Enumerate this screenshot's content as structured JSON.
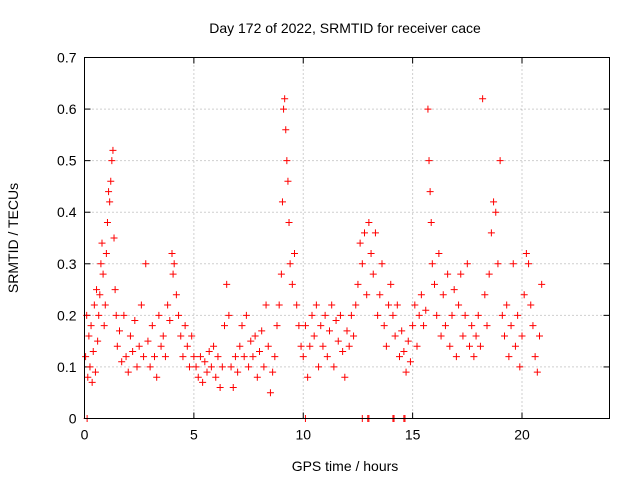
{
  "chart_data": {
    "type": "scatter",
    "title": "Day 172 of 2022, SRMTID for receiver cace",
    "xlabel": "GPS time / hours",
    "ylabel": "SRMTID / TECUs",
    "xlim": [
      0,
      24
    ],
    "ylim": [
      0,
      0.7
    ],
    "xticks": [
      0,
      5,
      10,
      15,
      20
    ],
    "yticks": [
      0,
      0.1,
      0.2,
      0.3,
      0.4,
      0.5,
      0.6,
      0.7
    ],
    "grid": true,
    "marker": "+",
    "color": "#ff0000",
    "series": [
      {
        "name": "SRMTID",
        "points": [
          [
            0.05,
            0.12
          ],
          [
            0.1,
            0.2
          ],
          [
            0.15,
            0.08
          ],
          [
            0.2,
            0.16
          ],
          [
            0.25,
            0.1
          ],
          [
            0.3,
            0.18
          ],
          [
            0.35,
            0.07
          ],
          [
            0.4,
            0.13
          ],
          [
            0.45,
            0.22
          ],
          [
            0.5,
            0.09
          ],
          [
            0.55,
            0.25
          ],
          [
            0.6,
            0.15
          ],
          [
            0.65,
            0.2
          ],
          [
            0.7,
            0.24
          ],
          [
            0.75,
            0.3
          ],
          [
            0.8,
            0.34
          ],
          [
            0.85,
            0.28
          ],
          [
            0.9,
            0.18
          ],
          [
            0.95,
            0.22
          ],
          [
            1.0,
            0.32
          ],
          [
            1.05,
            0.38
          ],
          [
            1.1,
            0.44
          ],
          [
            1.15,
            0.42
          ],
          [
            1.2,
            0.46
          ],
          [
            1.25,
            0.5
          ],
          [
            1.3,
            0.52
          ],
          [
            1.35,
            0.35
          ],
          [
            1.4,
            0.25
          ],
          [
            1.45,
            0.2
          ],
          [
            1.5,
            0.14
          ],
          [
            1.6,
            0.17
          ],
          [
            1.7,
            0.11
          ],
          [
            1.8,
            0.2
          ],
          [
            1.9,
            0.12
          ],
          [
            2.0,
            0.09
          ],
          [
            2.1,
            0.16
          ],
          [
            2.2,
            0.13
          ],
          [
            2.3,
            0.19
          ],
          [
            2.4,
            0.1
          ],
          [
            2.5,
            0.14
          ],
          [
            2.6,
            0.22
          ],
          [
            2.7,
            0.12
          ],
          [
            2.8,
            0.3
          ],
          [
            2.9,
            0.15
          ],
          [
            3.0,
            0.1
          ],
          [
            3.1,
            0.18
          ],
          [
            3.2,
            0.12
          ],
          [
            3.3,
            0.08
          ],
          [
            3.4,
            0.2
          ],
          [
            3.5,
            0.14
          ],
          [
            3.6,
            0.16
          ],
          [
            3.7,
            0.12
          ],
          [
            3.8,
            0.22
          ],
          [
            3.9,
            0.19
          ],
          [
            4.0,
            0.32
          ],
          [
            4.05,
            0.28
          ],
          [
            4.1,
            0.3
          ],
          [
            4.2,
            0.24
          ],
          [
            4.3,
            0.2
          ],
          [
            4.4,
            0.16
          ],
          [
            4.5,
            0.12
          ],
          [
            4.6,
            0.18
          ],
          [
            4.7,
            0.14
          ],
          [
            4.8,
            0.1
          ],
          [
            4.9,
            0.16
          ],
          [
            5.0,
            0.12
          ],
          [
            5.1,
            0.1
          ],
          [
            5.2,
            0.08
          ],
          [
            5.3,
            0.12
          ],
          [
            5.4,
            0.07
          ],
          [
            5.5,
            0.11
          ],
          [
            5.6,
            0.09
          ],
          [
            5.7,
            0.13
          ],
          [
            5.8,
            0.1
          ],
          [
            5.9,
            0.14
          ],
          [
            6.0,
            0.08
          ],
          [
            6.1,
            0.12
          ],
          [
            6.2,
            0.06
          ],
          [
            6.3,
            0.1
          ],
          [
            6.4,
            0.18
          ],
          [
            6.5,
            0.26
          ],
          [
            6.6,
            0.2
          ],
          [
            6.7,
            0.1
          ],
          [
            6.8,
            0.06
          ],
          [
            6.9,
            0.12
          ],
          [
            7.0,
            0.09
          ],
          [
            7.1,
            0.14
          ],
          [
            7.2,
            0.18
          ],
          [
            7.3,
            0.12
          ],
          [
            7.4,
            0.2
          ],
          [
            7.5,
            0.1
          ],
          [
            7.6,
            0.15
          ],
          [
            7.7,
            0.12
          ],
          [
            7.8,
            0.16
          ],
          [
            7.9,
            0.08
          ],
          [
            8.0,
            0.13
          ],
          [
            8.1,
            0.17
          ],
          [
            8.2,
            0.1
          ],
          [
            8.3,
            0.22
          ],
          [
            8.4,
            0.14
          ],
          [
            8.5,
            0.05
          ],
          [
            8.6,
            0.09
          ],
          [
            8.7,
            0.12
          ],
          [
            8.8,
            0.18
          ],
          [
            8.9,
            0.22
          ],
          [
            9.0,
            0.28
          ],
          [
            9.05,
            0.42
          ],
          [
            9.1,
            0.6
          ],
          [
            9.15,
            0.62
          ],
          [
            9.2,
            0.56
          ],
          [
            9.25,
            0.5
          ],
          [
            9.3,
            0.46
          ],
          [
            9.35,
            0.38
          ],
          [
            9.4,
            0.3
          ],
          [
            9.5,
            0.26
          ],
          [
            9.6,
            0.32
          ],
          [
            9.7,
            0.22
          ],
          [
            9.8,
            0.18
          ],
          [
            9.9,
            0.14
          ],
          [
            10.0,
            0.12
          ],
          [
            10.1,
            0.18
          ],
          [
            10.2,
            0.08
          ],
          [
            10.3,
            0.14
          ],
          [
            10.4,
            0.2
          ],
          [
            10.5,
            0.16
          ],
          [
            10.6,
            0.22
          ],
          [
            10.7,
            0.1
          ],
          [
            10.8,
            0.18
          ],
          [
            10.9,
            0.14
          ],
          [
            11.0,
            0.2
          ],
          [
            11.1,
            0.12
          ],
          [
            11.2,
            0.17
          ],
          [
            11.3,
            0.22
          ],
          [
            11.4,
            0.1
          ],
          [
            11.5,
            0.19
          ],
          [
            11.6,
            0.15
          ],
          [
            11.7,
            0.2
          ],
          [
            11.8,
            0.13
          ],
          [
            11.9,
            0.08
          ],
          [
            12.0,
            0.17
          ],
          [
            12.1,
            0.14
          ],
          [
            12.2,
            0.2
          ],
          [
            12.3,
            0.16
          ],
          [
            12.4,
            0.22
          ],
          [
            12.5,
            0.26
          ],
          [
            12.6,
            0.34
          ],
          [
            12.7,
            0.3
          ],
          [
            12.8,
            0.36
          ],
          [
            12.9,
            0.24
          ],
          [
            13.0,
            0.38
          ],
          [
            13.1,
            0.32
          ],
          [
            13.2,
            0.28
          ],
          [
            13.3,
            0.36
          ],
          [
            13.4,
            0.2
          ],
          [
            13.5,
            0.24
          ],
          [
            13.6,
            0.3
          ],
          [
            13.7,
            0.18
          ],
          [
            13.8,
            0.14
          ],
          [
            13.9,
            0.22
          ],
          [
            14.0,
            0.26
          ],
          [
            14.1,
            0.2
          ],
          [
            14.2,
            0.16
          ],
          [
            14.3,
            0.22
          ],
          [
            14.4,
            0.12
          ],
          [
            14.5,
            0.17
          ],
          [
            14.6,
            0.13
          ],
          [
            14.7,
            0.09
          ],
          [
            14.8,
            0.15
          ],
          [
            14.9,
            0.11
          ],
          [
            15.0,
            0.18
          ],
          [
            15.1,
            0.22
          ],
          [
            15.2,
            0.14
          ],
          [
            15.3,
            0.2
          ],
          [
            15.4,
            0.24
          ],
          [
            15.5,
            0.18
          ],
          [
            15.6,
            0.21
          ],
          [
            15.7,
            0.6
          ],
          [
            15.75,
            0.5
          ],
          [
            15.8,
            0.44
          ],
          [
            15.85,
            0.38
          ],
          [
            15.9,
            0.3
          ],
          [
            16.0,
            0.26
          ],
          [
            16.1,
            0.2
          ],
          [
            16.2,
            0.32
          ],
          [
            16.3,
            0.16
          ],
          [
            16.4,
            0.24
          ],
          [
            16.5,
            0.18
          ],
          [
            16.6,
            0.28
          ],
          [
            16.7,
            0.14
          ],
          [
            16.8,
            0.2
          ],
          [
            16.9,
            0.25
          ],
          [
            17.0,
            0.12
          ],
          [
            17.1,
            0.22
          ],
          [
            17.2,
            0.28
          ],
          [
            17.3,
            0.16
          ],
          [
            17.4,
            0.2
          ],
          [
            17.5,
            0.3
          ],
          [
            17.6,
            0.14
          ],
          [
            17.7,
            0.18
          ],
          [
            17.8,
            0.12
          ],
          [
            17.9,
            0.16
          ],
          [
            18.0,
            0.2
          ],
          [
            18.1,
            0.14
          ],
          [
            18.2,
            0.62
          ],
          [
            18.3,
            0.24
          ],
          [
            18.4,
            0.18
          ],
          [
            18.5,
            0.28
          ],
          [
            18.6,
            0.36
          ],
          [
            18.7,
            0.42
          ],
          [
            18.8,
            0.4
          ],
          [
            18.9,
            0.3
          ],
          [
            19.0,
            0.5
          ],
          [
            19.1,
            0.2
          ],
          [
            19.2,
            0.16
          ],
          [
            19.3,
            0.22
          ],
          [
            19.4,
            0.12
          ],
          [
            19.5,
            0.18
          ],
          [
            19.6,
            0.3
          ],
          [
            19.7,
            0.14
          ],
          [
            19.8,
            0.2
          ],
          [
            19.9,
            0.1
          ],
          [
            20.0,
            0.16
          ],
          [
            20.1,
            0.24
          ],
          [
            20.2,
            0.32
          ],
          [
            20.3,
            0.3
          ],
          [
            20.4,
            0.22
          ],
          [
            20.5,
            0.18
          ],
          [
            20.6,
            0.12
          ],
          [
            20.7,
            0.09
          ],
          [
            20.8,
            0.16
          ],
          [
            20.9,
            0.26
          ],
          [
            0.12,
            0.0
          ],
          [
            10.1,
            0.0
          ],
          [
            12.7,
            0.0
          ],
          [
            12.95,
            0.0
          ],
          [
            13.0,
            0.0
          ],
          [
            14.1,
            0.0
          ],
          [
            14.15,
            0.0
          ],
          [
            14.6,
            0.0
          ],
          [
            14.65,
            0.0
          ]
        ]
      }
    ]
  }
}
